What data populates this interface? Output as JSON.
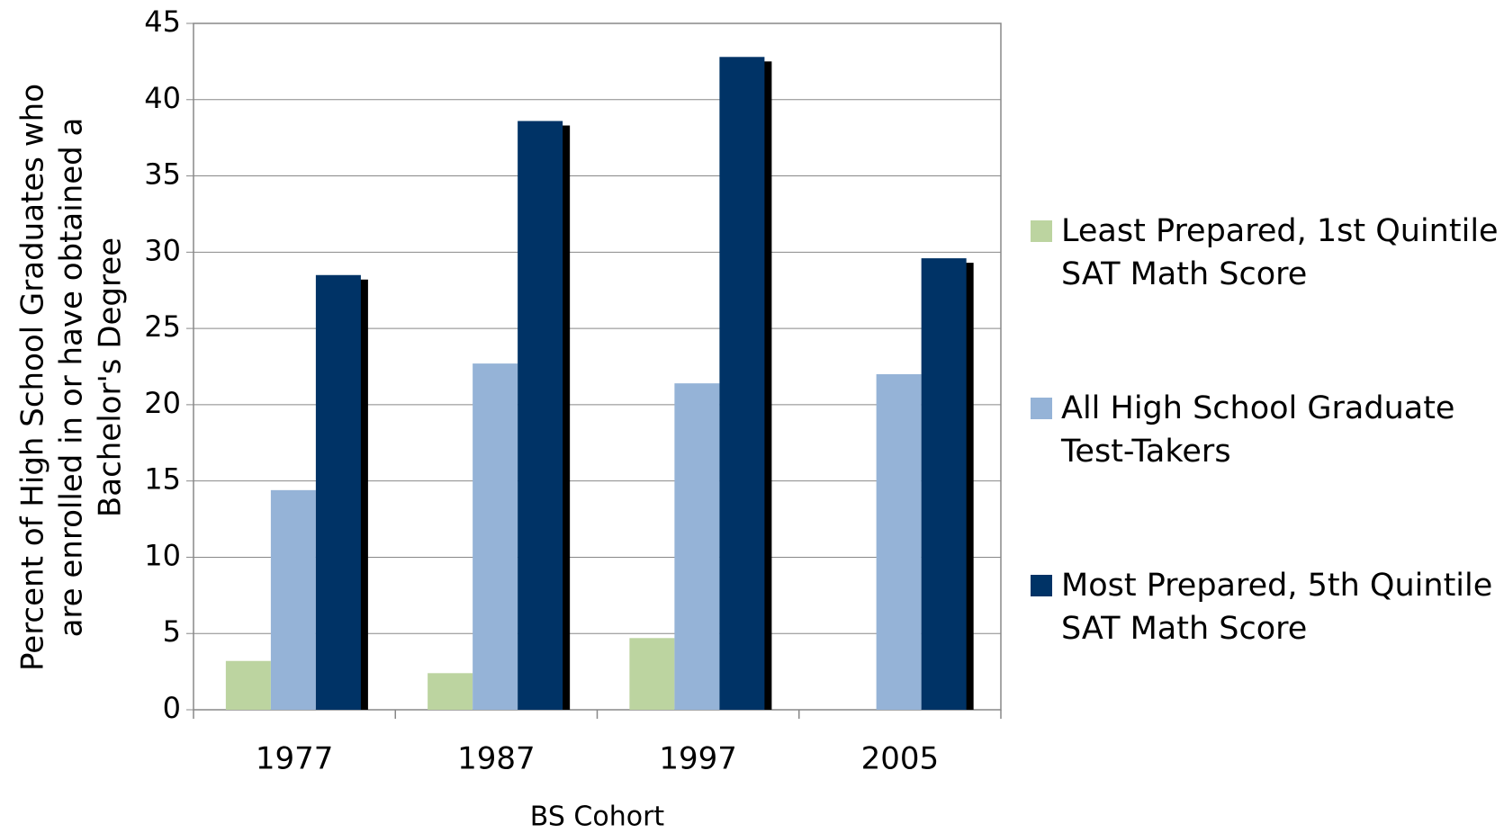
{
  "chart_data": {
    "type": "bar",
    "x_label": "BS Cohort",
    "y_label": "Percent of High School Graduates who are enrolled in or have obtained a Bachelor's Degree",
    "categories": [
      "1977",
      "1987",
      "1997",
      "2005"
    ],
    "series": [
      {
        "name": "Least Prepared, 1st Quintile SAT Math Score",
        "color": "#bcd4a0",
        "values": [
          3.2,
          2.4,
          4.7,
          null
        ]
      },
      {
        "name": "All High School Graduate Test-Takers",
        "color": "#95b3d7",
        "values": [
          14.4,
          22.7,
          21.4,
          22.0
        ]
      },
      {
        "name": "Most Prepared, 5th Quintile SAT Math Score",
        "color": "#003366",
        "values": [
          28.5,
          38.6,
          42.8,
          29.6
        ]
      }
    ],
    "ylim": [
      0,
      45
    ],
    "yticks": [
      0,
      5,
      10,
      15,
      20,
      25,
      30,
      35,
      40,
      45
    ],
    "grid": true,
    "legend": "right"
  }
}
